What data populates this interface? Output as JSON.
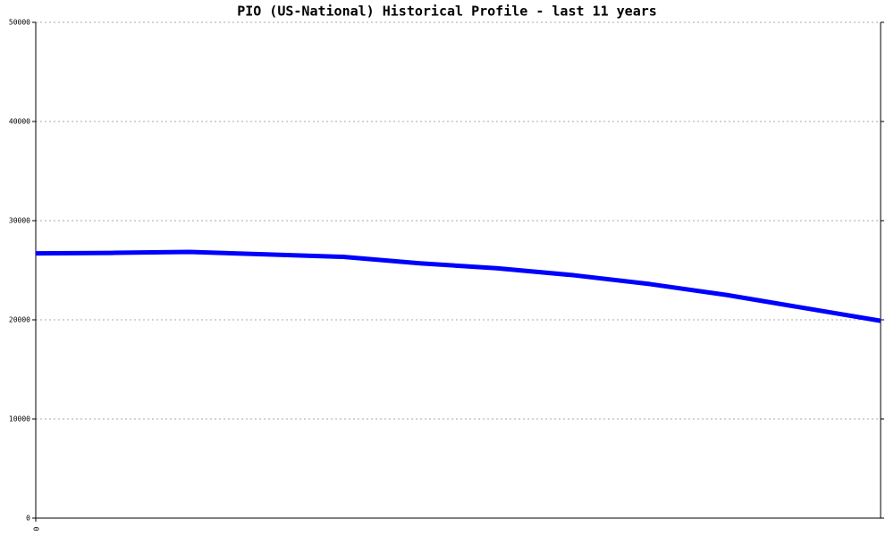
{
  "chart_data": {
    "type": "line",
    "title": "PIO (US-National) Historical Profile - last 11 years",
    "x": [
      0,
      1,
      2,
      3,
      4,
      5,
      6,
      7,
      8,
      9,
      10,
      11
    ],
    "series": [
      {
        "name": "PIO",
        "color": "#0000ff",
        "values": [
          26700,
          26750,
          26850,
          26600,
          26350,
          25700,
          25200,
          24500,
          23600,
          22500,
          21200,
          19900
        ]
      }
    ],
    "xlim": [
      0,
      11
    ],
    "xticks": [
      0
    ],
    "ylim": [
      0,
      50000
    ],
    "yticks": [
      0,
      10000,
      20000,
      30000,
      40000,
      50000
    ],
    "grid": true
  }
}
